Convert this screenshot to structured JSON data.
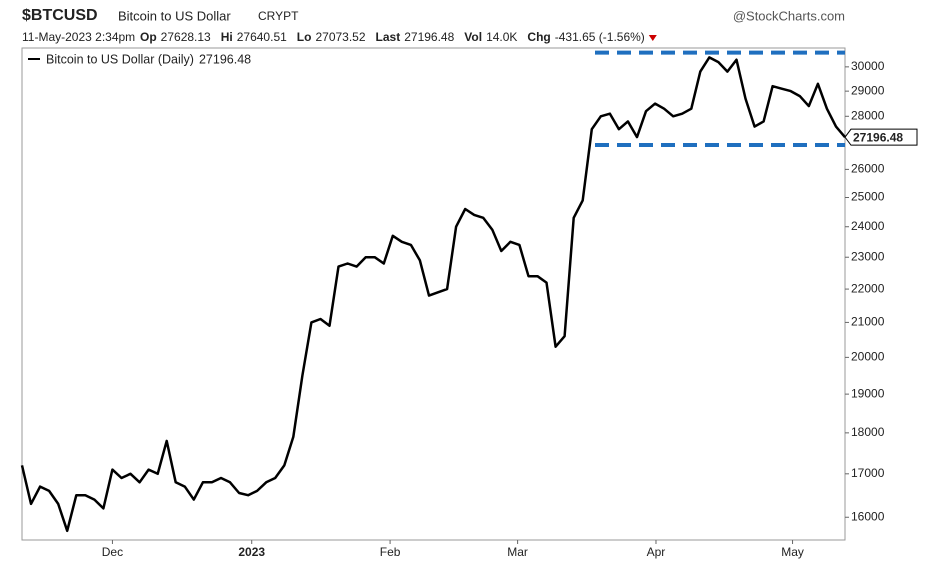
{
  "chart_data": {
    "type": "line",
    "symbol": "$BTCUSD",
    "title": "Bitcoin to US Dollar",
    "exchange": "CRYPT",
    "source": "@StockCharts.com",
    "timestamp": "11-May-2023 2:34pm",
    "stats": [
      {
        "label": "Op",
        "value": 27628.13
      },
      {
        "label": "Hi",
        "value": 27640.51
      },
      {
        "label": "Lo",
        "value": 27073.52
      },
      {
        "label": "Last",
        "value": 27196.48
      },
      {
        "label": "Vol",
        "value": "14.0K"
      },
      {
        "label": "Chg",
        "value": "-431.65 (-1.56%)"
      }
    ],
    "series": [
      {
        "name": "Bitcoin to US Dollar (Daily)",
        "color": "#000000",
        "values": [
          17200,
          16300,
          16700,
          16600,
          16300,
          15700,
          16500,
          16500,
          16400,
          16200,
          17100,
          16900,
          17000,
          16800,
          17100,
          17000,
          17800,
          16800,
          16700,
          16400,
          16800,
          16800,
          16900,
          16800,
          16550,
          16500,
          16600,
          16800,
          16900,
          17200,
          17900,
          19500,
          21000,
          21100,
          20900,
          22700,
          22800,
          22700,
          23000,
          23000,
          22800,
          23700,
          23500,
          23400,
          22900,
          21800,
          21900,
          22000,
          24000,
          24600,
          24400,
          24300,
          23900,
          23200,
          23500,
          23400,
          22400,
          22400,
          22200,
          20300,
          20600,
          24300,
          24900,
          27500,
          28000,
          28100,
          27500,
          27800,
          27200,
          28200,
          28500,
          28300,
          28000,
          28100,
          28300,
          29800,
          30400,
          30200,
          29800,
          30300,
          28700,
          27600,
          27800,
          29200,
          29100,
          29000,
          28800,
          28400,
          29300,
          28300,
          27600,
          27196.48
        ]
      }
    ],
    "xlim": [
      0,
      91
    ],
    "xticks": [
      {
        "value": 10,
        "label": "Dec"
      },
      {
        "value": 25.4,
        "label": "2023"
      },
      {
        "value": 40.7,
        "label": "Feb"
      },
      {
        "value": 54.8,
        "label": "Mar"
      },
      {
        "value": 70.1,
        "label": "Apr"
      },
      {
        "value": 85.2,
        "label": "May"
      }
    ],
    "ylim": [
      15500,
      30800
    ],
    "log_scale": true,
    "yticks": [
      16000,
      17000,
      18000,
      19000,
      20000,
      21000,
      22000,
      23000,
      24000,
      25000,
      26000,
      28000,
      29000,
      30000
    ],
    "levels": [
      {
        "value": 30600,
        "color": "#1f6fbf"
      },
      {
        "value": 26900,
        "color": "#1f6fbf"
      }
    ]
  }
}
